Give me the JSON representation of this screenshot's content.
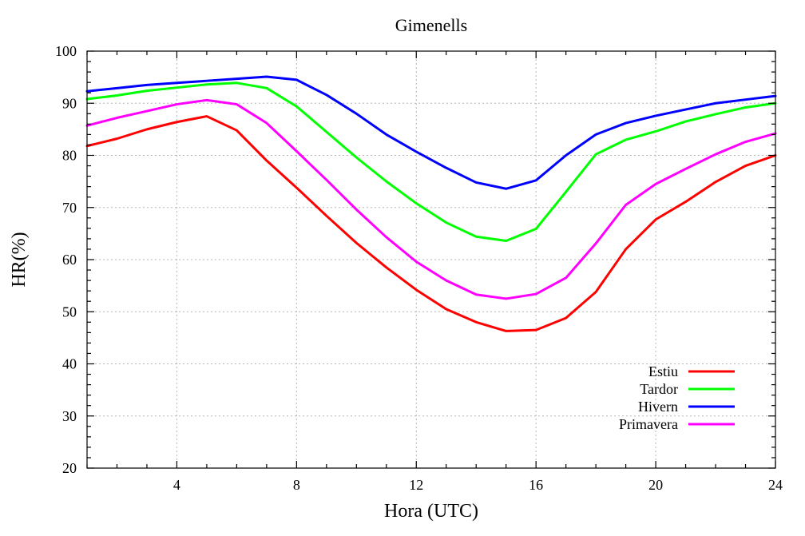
{
  "chart_data": {
    "type": "line",
    "title": "Gimenells",
    "xlabel": "Hora (UTC)",
    "ylabel": "HR(%)",
    "xlim": [
      1,
      24
    ],
    "ylim": [
      20,
      100
    ],
    "x_ticks": [
      4,
      8,
      12,
      16,
      20,
      24
    ],
    "y_ticks": [
      20,
      30,
      40,
      50,
      60,
      70,
      80,
      90,
      100
    ],
    "grid": true,
    "legend_position": "bottom-right",
    "x": [
      1,
      2,
      3,
      4,
      5,
      6,
      7,
      8,
      9,
      10,
      11,
      12,
      13,
      14,
      15,
      16,
      17,
      18,
      19,
      20,
      21,
      22,
      23,
      24
    ],
    "series": [
      {
        "name": "Estiu",
        "color": "#ff0000",
        "values": [
          81.8,
          83.2,
          85.0,
          86.4,
          87.5,
          84.8,
          79.0,
          73.8,
          68.4,
          63.2,
          58.5,
          54.2,
          50.5,
          48.0,
          46.3,
          46.5,
          48.8,
          53.8,
          62.0,
          67.7,
          71.1,
          74.9,
          78.0,
          80.0
        ]
      },
      {
        "name": "Tardor",
        "color": "#00ff00",
        "values": [
          90.8,
          91.5,
          92.4,
          93.0,
          93.6,
          93.9,
          92.9,
          89.4,
          84.5,
          79.6,
          75.0,
          70.8,
          67.1,
          64.4,
          63.6,
          65.9,
          73.0,
          80.2,
          83.0,
          84.6,
          86.5,
          87.9,
          89.2,
          90.0
        ]
      },
      {
        "name": "Hivern",
        "color": "#0000ff",
        "values": [
          92.3,
          92.9,
          93.5,
          93.9,
          94.3,
          94.7,
          95.1,
          94.5,
          91.6,
          88.0,
          84.0,
          80.7,
          77.6,
          74.8,
          73.6,
          75.2,
          80.0,
          84.0,
          86.2,
          87.6,
          88.8,
          90.0,
          90.7,
          91.4
        ]
      },
      {
        "name": "Primavera",
        "color": "#ff00ff",
        "values": [
          85.7,
          87.2,
          88.5,
          89.8,
          90.6,
          89.8,
          86.2,
          80.8,
          75.3,
          69.6,
          64.3,
          59.6,
          56.0,
          53.3,
          52.5,
          53.4,
          56.5,
          63.1,
          70.5,
          74.5,
          77.4,
          80.2,
          82.6,
          84.2
        ]
      }
    ]
  }
}
